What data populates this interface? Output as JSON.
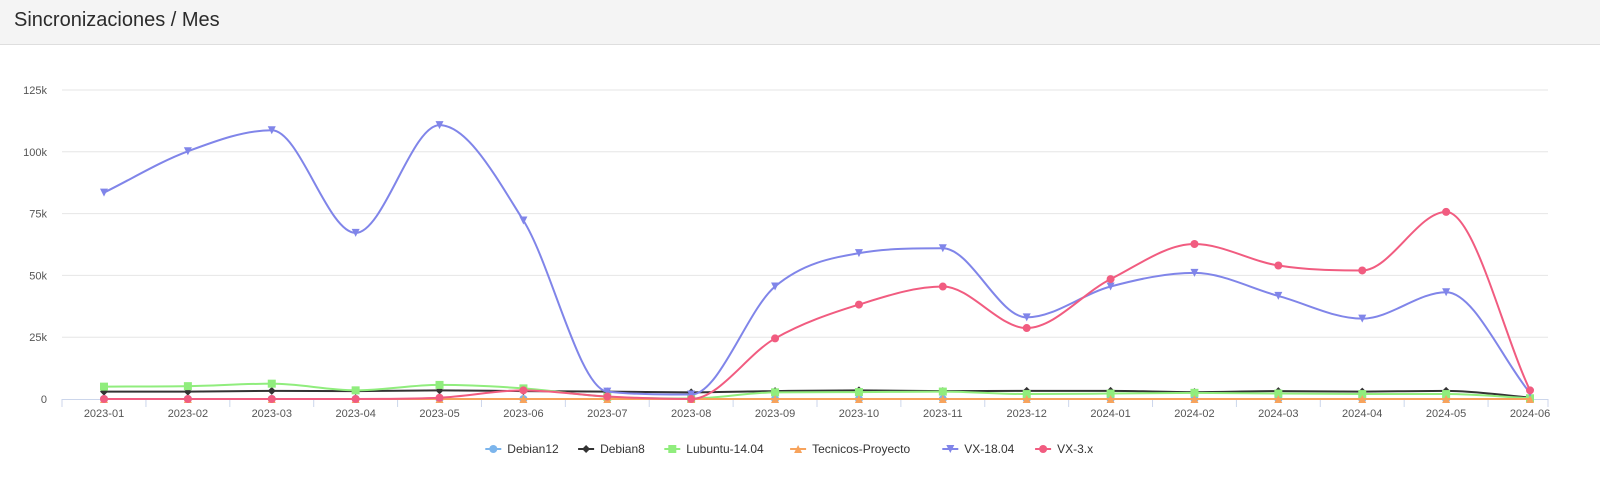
{
  "header": {
    "title": "Sincronizaciones / Mes"
  },
  "chart_data": {
    "type": "line",
    "title": "",
    "xlabel": "",
    "ylabel": "",
    "ylim": [
      0,
      125000
    ],
    "yticks": [
      {
        "value": 0,
        "label": "0"
      },
      {
        "value": 25000,
        "label": "25k"
      },
      {
        "value": 50000,
        "label": "50k"
      },
      {
        "value": 75000,
        "label": "75k"
      },
      {
        "value": 100000,
        "label": "100k"
      },
      {
        "value": 125000,
        "label": "125k"
      }
    ],
    "grid": true,
    "legend": "bottom-center",
    "categories": [
      "2023-01",
      "2023-02",
      "2023-03",
      "2023-04",
      "2023-05",
      "2023-06",
      "2023-07",
      "2023-08",
      "2023-09",
      "2023-10",
      "2023-11",
      "2023-12",
      "2024-01",
      "2024-02",
      "2024-03",
      "2024-04",
      "2024-05",
      "2024-06"
    ],
    "series": [
      {
        "name": "Debian12",
        "color": "#7cb5ec",
        "marker": "circle",
        "values": [
          0,
          0,
          0,
          0,
          0,
          0,
          0,
          0,
          0,
          0,
          0,
          0,
          0,
          0,
          0,
          0,
          0,
          0
        ]
      },
      {
        "name": "Debian8",
        "color": "#333333",
        "marker": "diamond",
        "values": [
          3000,
          3000,
          3300,
          3200,
          3500,
          3200,
          3000,
          2700,
          3200,
          3500,
          3200,
          3300,
          3300,
          2800,
          3200,
          3000,
          3300,
          600
        ]
      },
      {
        "name": "Lubuntu-14.04",
        "color": "#90ed7d",
        "marker": "square",
        "values": [
          5000,
          5200,
          6200,
          3500,
          5700,
          4300,
          900,
          200,
          2700,
          2800,
          3000,
          2000,
          2200,
          2500,
          2200,
          2000,
          2000,
          300
        ]
      },
      {
        "name": "Tecnicos-Proyecto",
        "color": "#f7a35c",
        "marker": "triangle",
        "values": [
          0,
          0,
          0,
          0,
          0,
          0,
          0,
          0,
          0,
          0,
          0,
          0,
          0,
          0,
          0,
          0,
          0,
          0
        ]
      },
      {
        "name": "VX-18.04",
        "color": "#8085e9",
        "marker": "triangle-down",
        "values": [
          83500,
          100200,
          108700,
          67200,
          110800,
          72200,
          3000,
          1800,
          45500,
          59000,
          61000,
          33000,
          45500,
          51000,
          41700,
          32500,
          43200,
          2500
        ]
      },
      {
        "name": "VX-3.x",
        "color": "#f15c80",
        "marker": "circle",
        "values": [
          0,
          0,
          0,
          0,
          500,
          3500,
          1000,
          0,
          24500,
          38200,
          45500,
          28700,
          48500,
          62700,
          54000,
          52000,
          75700,
          3500
        ]
      }
    ]
  }
}
